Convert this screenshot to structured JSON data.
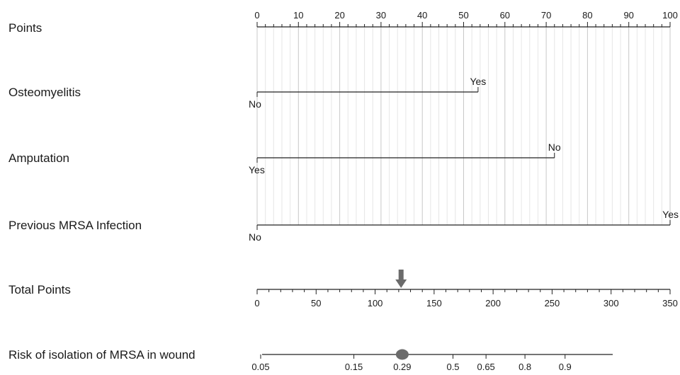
{
  "chart_data": {
    "type": "nomogram",
    "points_axis": {
      "label": "Points",
      "range": [
        0,
        100
      ],
      "major_ticks": [
        0,
        10,
        20,
        30,
        40,
        50,
        60,
        70,
        80,
        90,
        100
      ],
      "minor_step": 2
    },
    "grid": {
      "major": true,
      "minor": true,
      "major_color": "#c8c8c8",
      "minor_color": "#e6e6e6"
    },
    "variables": [
      {
        "label": "Osteomyelitis",
        "levels": [
          {
            "name": "No",
            "points": 0
          },
          {
            "name": "Yes",
            "points": 53.5
          }
        ]
      },
      {
        "label": "Amputation",
        "levels": [
          {
            "name": "Yes",
            "points": 0
          },
          {
            "name": "No",
            "points": 72
          }
        ]
      },
      {
        "label": "Previous MRSA Infection",
        "levels": [
          {
            "name": "No",
            "points": 0
          },
          {
            "name": "Yes",
            "points": 100
          }
        ]
      }
    ],
    "total_points_axis": {
      "label": "Total Points",
      "range": [
        0,
        350
      ],
      "major_ticks": [
        0,
        50,
        100,
        150,
        200,
        250,
        300,
        350
      ],
      "minor_step": 10,
      "marker_value": 122
    },
    "risk_axis": {
      "label": "Risk of isolation of MRSA in wound",
      "ticks": [
        {
          "label": "0.05",
          "total_points": 3
        },
        {
          "label": "0.15",
          "total_points": 82
        },
        {
          "label": "0.29",
          "total_points": 123
        },
        {
          "label": "0.5",
          "total_points": 166
        },
        {
          "label": "0.65",
          "total_points": 194
        },
        {
          "label": "0.8",
          "total_points": 227
        },
        {
          "label": "0.9",
          "total_points": 261
        }
      ],
      "marker_value": "0.29",
      "marker_total_points": 123
    },
    "colors": {
      "axis": "#222222",
      "marker": "#6b6b6b"
    }
  }
}
